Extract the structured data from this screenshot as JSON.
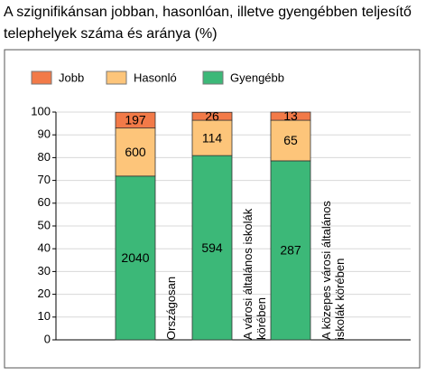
{
  "chart_data": {
    "type": "stacked_bar_100",
    "title": "A szignifikánsan jobban, hasonlóan, illetve gyengébben teljesítő telephelyek száma és aránya (%)",
    "categories": [
      "Országosan",
      "A városi általános iskolák körében",
      "A közepes városi általános iskolák körében"
    ],
    "series": [
      {
        "name": "Gyengébb",
        "color": "#3cb878",
        "values": [
          71.9,
          80.9,
          78.6
        ],
        "counts": [
          2040,
          594,
          287
        ]
      },
      {
        "name": "Hasonló",
        "color": "#fdc57a",
        "values": [
          21.1,
          15.5,
          17.8
        ],
        "counts": [
          600,
          114,
          65
        ]
      },
      {
        "name": "Jobb",
        "color": "#f27a48",
        "values": [
          6.9,
          3.5,
          3.6
        ],
        "counts": [
          197,
          26,
          13
        ]
      }
    ],
    "legend_order": [
      2,
      1,
      0
    ],
    "ylim": [
      0,
      100
    ],
    "yticks": [
      0,
      10,
      20,
      30,
      40,
      50,
      60,
      70,
      80,
      90,
      100
    ],
    "grid": true
  }
}
